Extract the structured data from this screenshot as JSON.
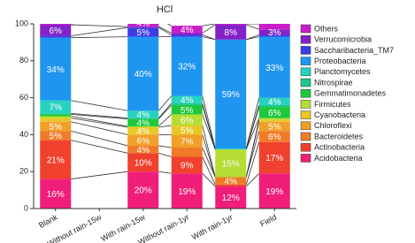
{
  "chart_data": {
    "type": "stacked_bar",
    "title": "HCl",
    "categories": [
      "Blank",
      "Without rain-15w",
      "With rain-15w",
      "Without rain-1yr",
      "With rain-1yr",
      "Field"
    ],
    "ylim": [
      0,
      100
    ],
    "yticks": [
      0,
      20,
      40,
      60,
      80,
      100
    ],
    "legend": "right",
    "series": [
      {
        "name": "Acidobacteria",
        "color": "#f01e78",
        "values": [
          16,
          null,
          20,
          19,
          12,
          19
        ],
        "value_labels": [
          "16%",
          null,
          "20%",
          "19%",
          "12%",
          "19%"
        ]
      },
      {
        "name": "Actinobacteria",
        "color": "#f0402e",
        "values": [
          21,
          null,
          10,
          9,
          1,
          17
        ],
        "value_labels": [
          "21%",
          null,
          "10%",
          "9%",
          null,
          "17%"
        ]
      },
      {
        "name": "Bacteroidetes",
        "color": "#f07a28",
        "values": [
          5,
          null,
          4,
          5,
          4,
          6
        ],
        "value_labels": [
          "5%",
          null,
          "4%",
          null,
          "4%",
          "6%"
        ]
      },
      {
        "name": "Chloroflexi",
        "color": "#f0a028",
        "values": [
          5,
          null,
          6,
          7,
          0,
          5
        ],
        "value_labels": [
          "5%",
          null,
          "6%",
          "7%",
          null,
          "5%"
        ]
      },
      {
        "name": "Cyanobacteria",
        "color": "#e8c828",
        "values": [
          2,
          null,
          4,
          5,
          0,
          1
        ],
        "value_labels": [
          null,
          null,
          "4%",
          "5%",
          null,
          null
        ]
      },
      {
        "name": "Firmicutes",
        "color": "#b4dc32",
        "values": [
          1,
          null,
          0.5,
          6,
          15,
          1
        ],
        "value_labels": [
          null,
          null,
          null,
          "6%",
          "15%",
          null
        ]
      },
      {
        "name": "Gemmatimonadetes",
        "color": "#1ec83c",
        "values": [
          1,
          null,
          4,
          5,
          0,
          6
        ],
        "value_labels": [
          null,
          null,
          "4%",
          "5%",
          null,
          "6%"
        ]
      },
      {
        "name": "Nitrospirae",
        "color": "#1ec88c",
        "values": [
          0.5,
          null,
          0.5,
          1,
          0,
          1
        ],
        "value_labels": [
          null,
          null,
          null,
          null,
          null,
          null
        ]
      },
      {
        "name": "Planctomycetes",
        "color": "#28d2c0",
        "values": [
          7,
          null,
          4,
          4,
          0.5,
          4
        ],
        "value_labels": [
          "7%",
          null,
          "4%",
          "4%",
          null,
          "4%"
        ]
      },
      {
        "name": "Proteobacteria",
        "color": "#1e96f0",
        "values": [
          34,
          null,
          40,
          32,
          59,
          33
        ],
        "value_labels": [
          "34%",
          null,
          "40%",
          "32%",
          "59%",
          "33%"
        ]
      },
      {
        "name": "Saccharibacteria_TM7",
        "color": "#3c3ce6",
        "values": [
          1,
          null,
          5,
          1,
          0,
          1
        ],
        "value_labels": [
          null,
          null,
          "5%",
          null,
          null,
          null
        ]
      },
      {
        "name": "Verrucomicrobia",
        "color": "#8222c8",
        "values": [
          6,
          null,
          0.5,
          1,
          8,
          3
        ],
        "value_labels": [
          "6%",
          null,
          null,
          null,
          "8%",
          "3%"
        ]
      },
      {
        "name": "Others",
        "color": "#c81ec8",
        "values": [
          0.5,
          null,
          4,
          4,
          0.5,
          3
        ],
        "value_labels": [
          null,
          null,
          "4%",
          "4%",
          null,
          null
        ]
      }
    ]
  }
}
